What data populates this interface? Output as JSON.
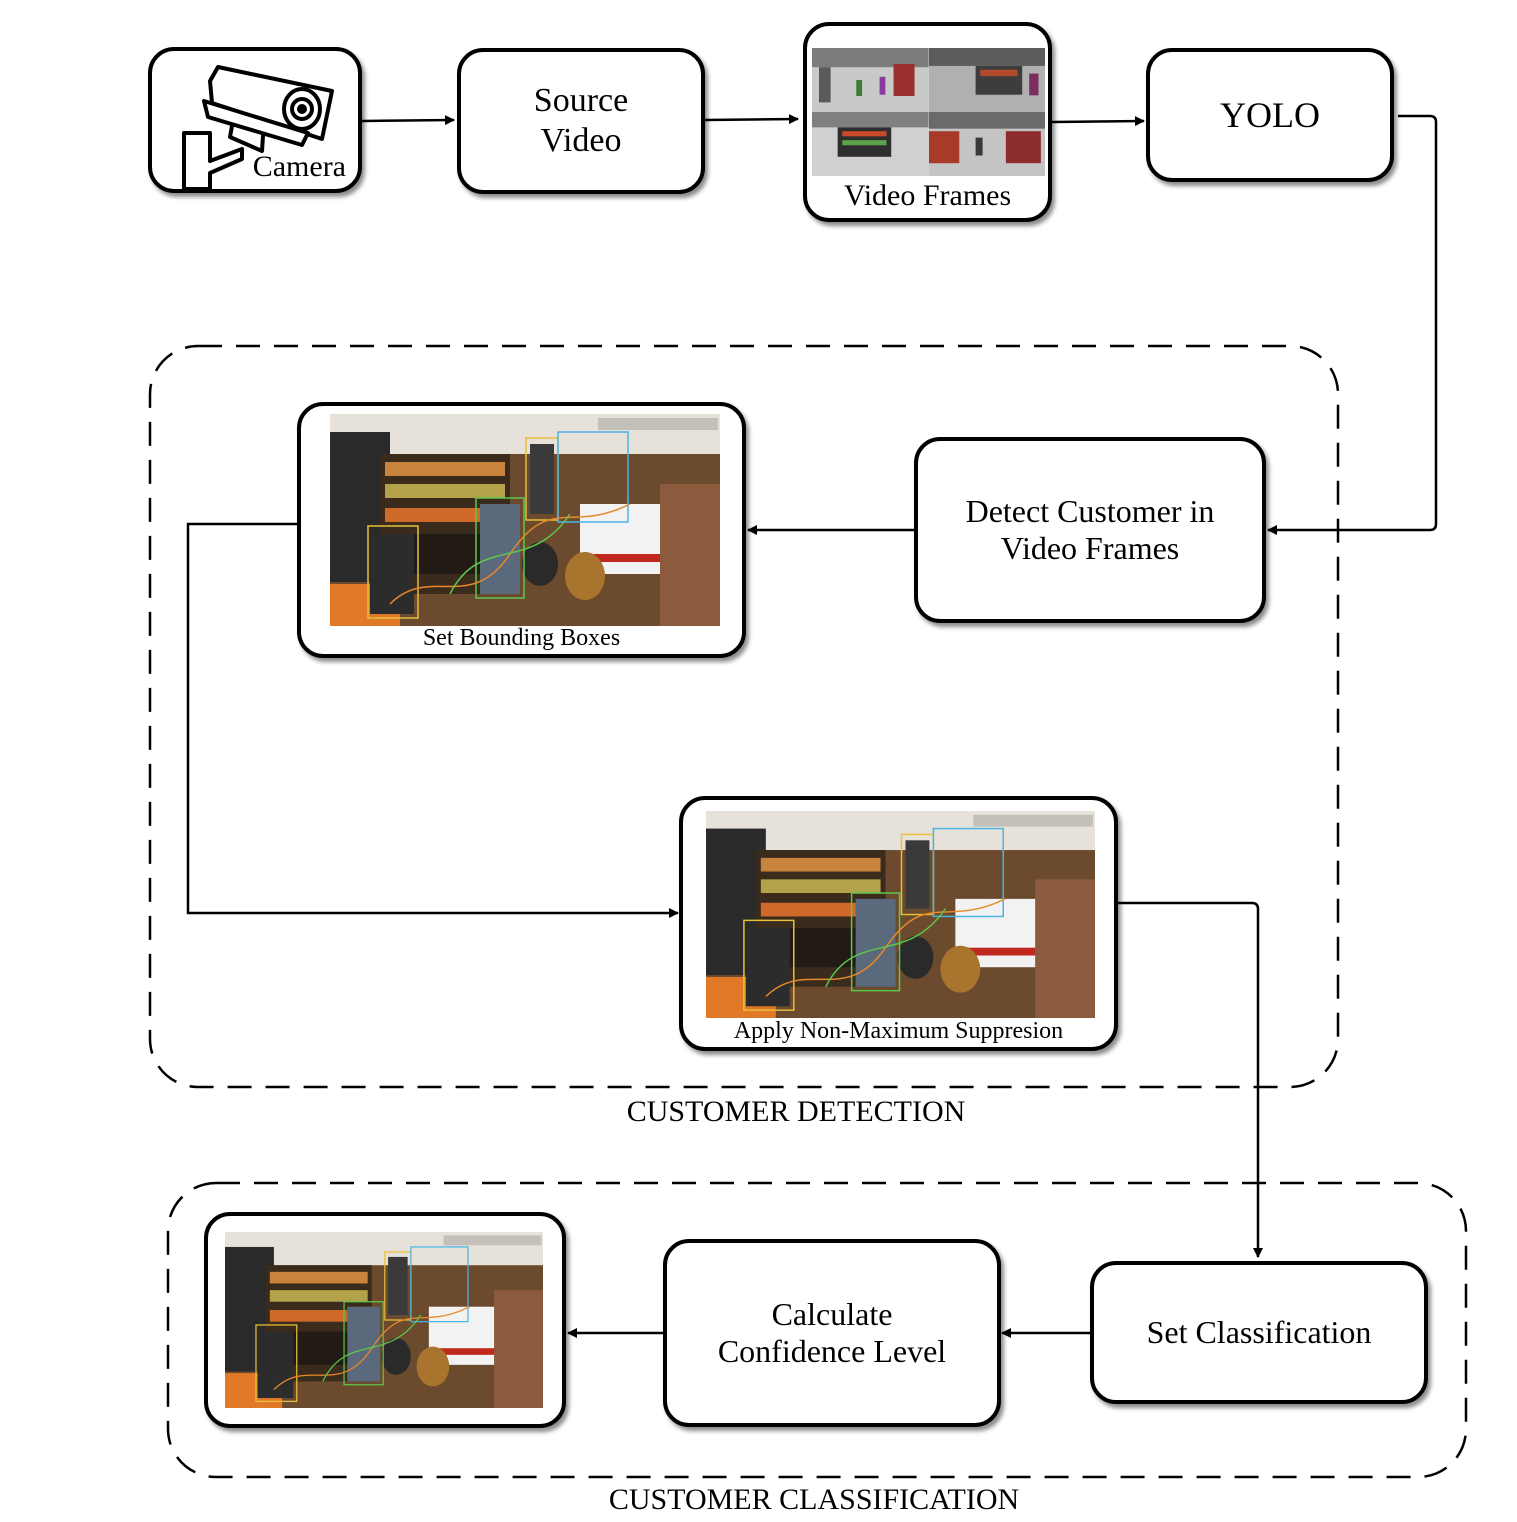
{
  "nodes": {
    "camera": "Camera",
    "source_video": "Source\nVideo",
    "video_frames": "Video Frames",
    "yolo": "YOLO",
    "detect_customer": "Detect Customer in\nVideo Frames",
    "set_bounding_boxes": "Set Bounding Boxes",
    "apply_nms": "Apply Non-Maximum Suppresion",
    "set_classification": "Set Classification",
    "calculate_confidence": "Calculate\nConfidence Level"
  },
  "groups": {
    "detection": "CUSTOMER DETECTION",
    "classification": "CUSTOMER CLASSIFICATION"
  },
  "icons": {
    "camera": "security-camera-icon",
    "frames": "video-frames-thumbnail",
    "detection": "store-detection-image"
  },
  "colors": {
    "stroke": "#000000",
    "background": "#ffffff"
  }
}
